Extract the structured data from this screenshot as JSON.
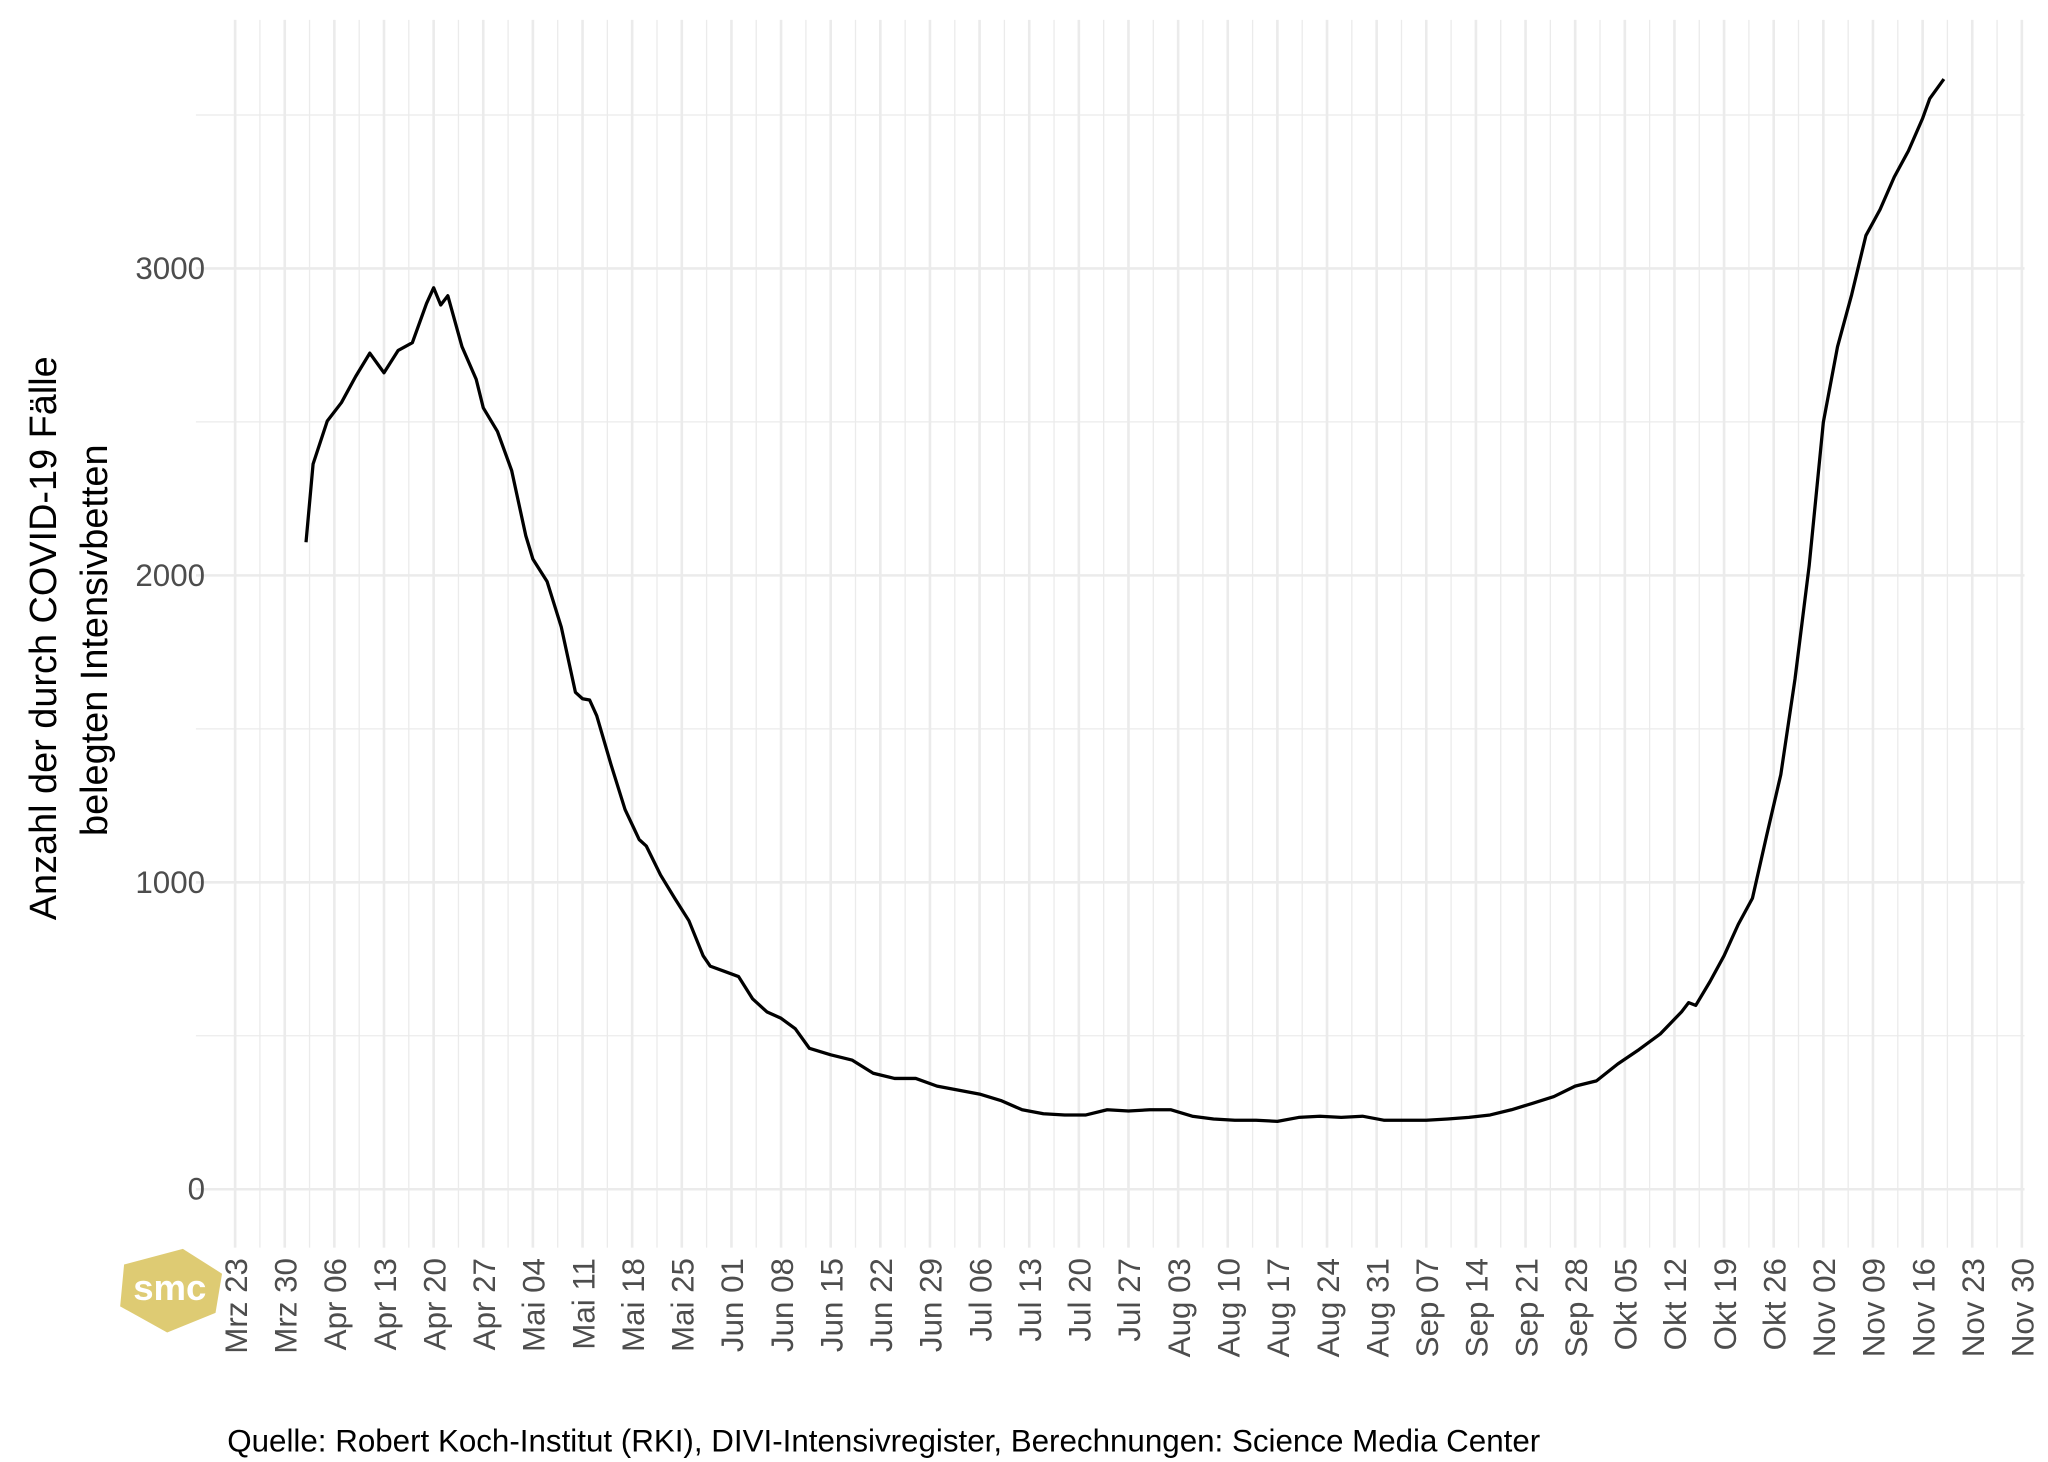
{
  "chart_data": {
    "type": "line",
    "ylabel": [
      "Anzahl der durch COVID-19 Fälle",
      "belegten Intensivbetten"
    ],
    "caption": "Quelle: Robert Koch-Institut (RKI), DIVI-Intensivregister, Berechnungen: Science Media Center",
    "logo": "smc",
    "color": "#000000",
    "grid": true,
    "x": [
      "Apr 02",
      "Apr 03",
      "Apr 05",
      "Apr 07",
      "Apr 09",
      "Apr 11",
      "Apr 13",
      "Apr 15",
      "Apr 17",
      "Apr 19",
      "Apr 20",
      "Apr 21",
      "Apr 22",
      "Apr 24",
      "Apr 26",
      "Apr 27",
      "Apr 29",
      "Mai 01",
      "Mai 03",
      "Mai 04",
      "Mai 06",
      "Mai 08",
      "Mai 10",
      "Mai 11",
      "Mai 12",
      "Mai 13",
      "Mai 15",
      "Mai 17",
      "Mai 19",
      "Mai 20",
      "Mai 22",
      "Mai 24",
      "Mai 26",
      "Mai 28",
      "Mai 29",
      "Mai 31",
      "Jun 02",
      "Jun 04",
      "Jun 06",
      "Jun 08",
      "Jun 10",
      "Jun 12",
      "Jun 15",
      "Jun 18",
      "Jun 21",
      "Jun 24",
      "Jun 27",
      "Jun 30",
      "Jul 03",
      "Jul 06",
      "Jul 09",
      "Jul 12",
      "Jul 15",
      "Jul 18",
      "Jul 21",
      "Jul 24",
      "Jul 27",
      "Jul 30",
      "Aug 02",
      "Aug 05",
      "Aug 08",
      "Aug 11",
      "Aug 14",
      "Aug 17",
      "Aug 20",
      "Aug 23",
      "Aug 26",
      "Aug 29",
      "Sep 01",
      "Sep 04",
      "Sep 07",
      "Sep 10",
      "Sep 13",
      "Sep 16",
      "Sep 19",
      "Sep 22",
      "Sep 25",
      "Sep 28",
      "Okt 01",
      "Okt 04",
      "Okt 07",
      "Okt 10",
      "Okt 13",
      "Okt 14",
      "Okt 15",
      "Okt 17",
      "Okt 19",
      "Okt 21",
      "Okt 23",
      "Okt 25",
      "Okt 27",
      "Okt 29",
      "Okt 31",
      "Nov 02",
      "Nov 04",
      "Nov 06",
      "Nov 08",
      "Nov 10",
      "Nov 12",
      "Nov 14",
      "Nov 16",
      "Nov 17",
      "Nov 19"
    ],
    "values": [
      2108,
      2363,
      2503,
      2563,
      2648,
      2724,
      2660,
      2733,
      2758,
      2886,
      2937,
      2881,
      2911,
      2745,
      2639,
      2546,
      2469,
      2342,
      2129,
      2053,
      1980,
      1832,
      1619,
      1598,
      1594,
      1543,
      1385,
      1237,
      1139,
      1118,
      1024,
      948,
      875,
      761,
      727,
      710,
      693,
      620,
      578,
      557,
      523,
      459,
      438,
      421,
      378,
      361,
      361,
      336,
      323,
      310,
      289,
      259,
      246,
      242,
      242,
      259,
      255,
      259,
      259,
      238,
      229,
      225,
      225,
      221,
      234,
      238,
      234,
      238,
      225,
      225,
      225,
      229,
      234,
      242,
      259,
      280,
      302,
      336,
      353,
      408,
      455,
      506,
      578,
      608,
      599,
      676,
      761,
      863,
      948,
      1152,
      1351,
      1662,
      2031,
      2499,
      2745,
      2915,
      3107,
      3192,
      3298,
      3383,
      3489,
      3553,
      3617
    ],
    "xlim": [
      "Mrz 23",
      "Nov 30"
    ],
    "xticks": [
      "Mrz 23",
      "Mrz 30",
      "Apr 06",
      "Apr 13",
      "Apr 20",
      "Apr 27",
      "Mai 04",
      "Mai 11",
      "Mai 18",
      "Mai 25",
      "Jun 01",
      "Jun 08",
      "Jun 15",
      "Jun 22",
      "Jun 29",
      "Jul 06",
      "Jul 13",
      "Jul 20",
      "Jul 27",
      "Aug 03",
      "Aug 10",
      "Aug 17",
      "Aug 24",
      "Aug 31",
      "Sep 07",
      "Sep 14",
      "Sep 21",
      "Sep 28",
      "Okt 05",
      "Okt 12",
      "Okt 19",
      "Okt 26",
      "Nov 02",
      "Nov 09",
      "Nov 16",
      "Nov 23",
      "Nov 30"
    ],
    "ylim": [
      -190,
      3810
    ],
    "yticks": [
      0,
      1000,
      2000,
      3000
    ]
  }
}
